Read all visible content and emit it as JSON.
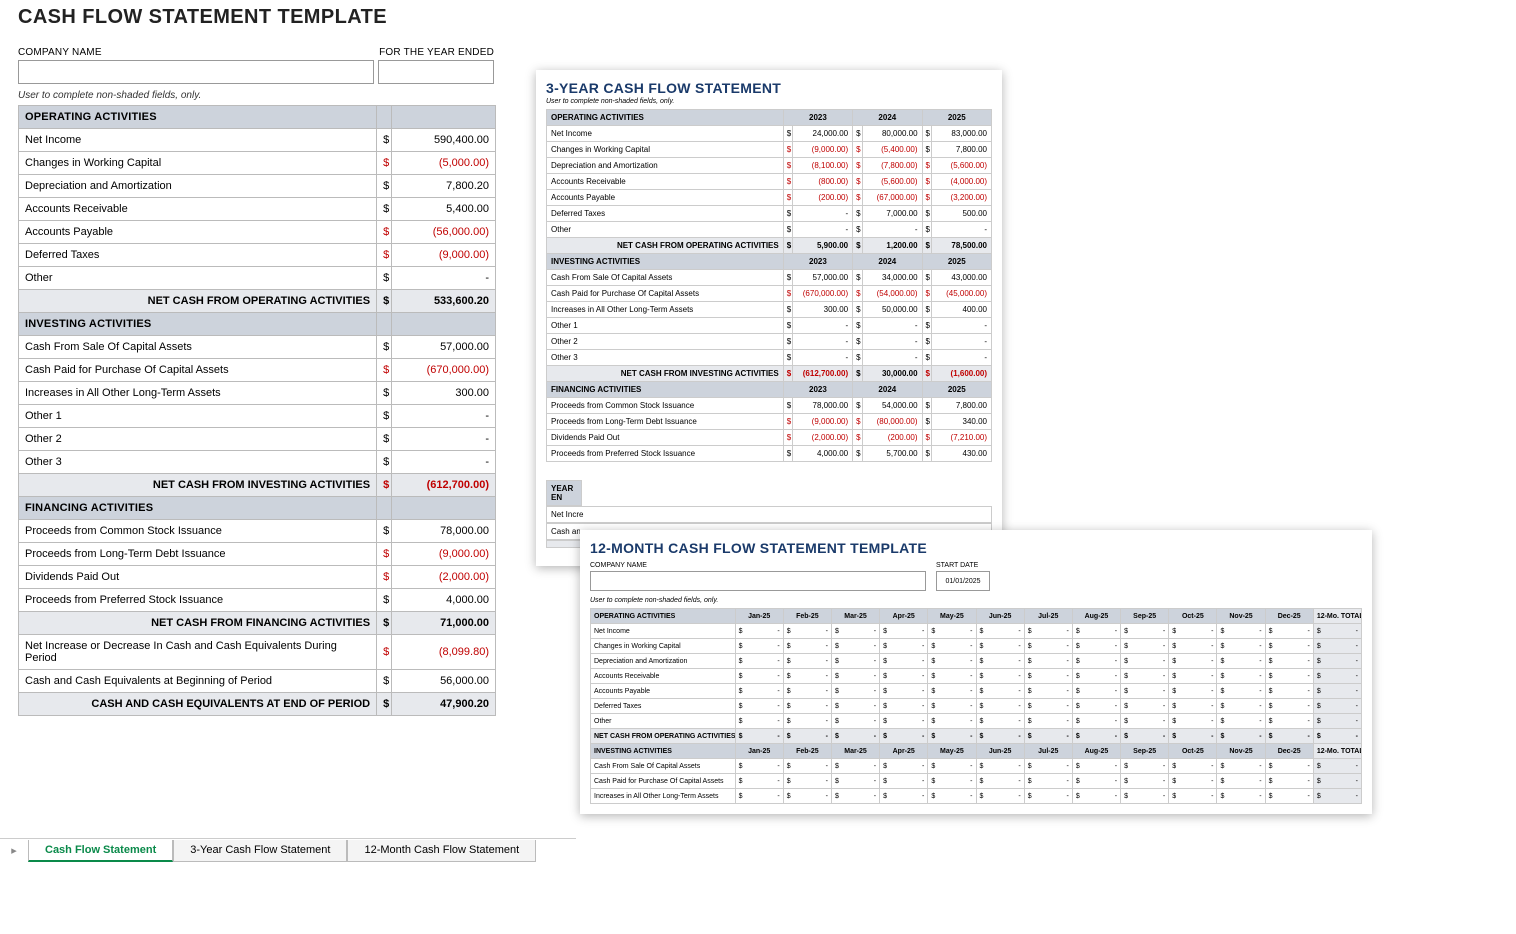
{
  "colors": {
    "section_header_bg": "#cdd3dc",
    "subtotal_bg": "#e7e9ed",
    "negative": "#c00000",
    "border": "#bbbbbb",
    "title_blue": "#1a3a6a",
    "tab_active": "#0a8a4a"
  },
  "main": {
    "title": "CASH FLOW STATEMENT TEMPLATE",
    "company_label": "COMPANY NAME",
    "year_label": "FOR THE YEAR ENDED",
    "helper": "User to complete non-shaded fields, only.",
    "currency": "$",
    "sections": [
      {
        "header": "OPERATING ACTIVITIES",
        "rows": [
          {
            "label": "Net Income",
            "value": "590,400.00",
            "neg": false
          },
          {
            "label": "Changes in Working Capital",
            "value": "(5,000.00)",
            "neg": true
          },
          {
            "label": "Depreciation and Amortization",
            "value": "7,800.20",
            "neg": false
          },
          {
            "label": "Accounts Receivable",
            "value": "5,400.00",
            "neg": false
          },
          {
            "label": "Accounts Payable",
            "value": "(56,000.00)",
            "neg": true
          },
          {
            "label": "Deferred Taxes",
            "value": "(9,000.00)",
            "neg": true
          },
          {
            "label": "Other",
            "value": "-",
            "neg": false
          }
        ],
        "subtotal": {
          "label": "NET CASH FROM OPERATING ACTIVITIES",
          "value": "533,600.20",
          "neg": false
        }
      },
      {
        "header": "INVESTING ACTIVITIES",
        "rows": [
          {
            "label": "Cash From Sale Of Capital Assets",
            "value": "57,000.00",
            "neg": false
          },
          {
            "label": "Cash Paid for Purchase Of Capital Assets",
            "value": "(670,000.00)",
            "neg": true
          },
          {
            "label": "Increases in All Other Long-Term Assets",
            "value": "300.00",
            "neg": false
          },
          {
            "label": "Other 1",
            "value": "-",
            "neg": false
          },
          {
            "label": "Other 2",
            "value": "-",
            "neg": false
          },
          {
            "label": "Other 3",
            "value": "-",
            "neg": false
          }
        ],
        "subtotal": {
          "label": "NET CASH FROM INVESTING ACTIVITIES",
          "value": "(612,700.00)",
          "neg": true
        }
      },
      {
        "header": "FINANCING ACTIVITIES",
        "rows": [
          {
            "label": "Proceeds from Common Stock Issuance",
            "value": "78,000.00",
            "neg": false
          },
          {
            "label": "Proceeds from Long-Term Debt Issuance",
            "value": "(9,000.00)",
            "neg": true
          },
          {
            "label": "Dividends Paid Out",
            "value": "(2,000.00)",
            "neg": true
          },
          {
            "label": "Proceeds from Preferred Stock Issuance",
            "value": "4,000.00",
            "neg": false
          }
        ],
        "subtotal": {
          "label": "NET CASH FROM FINANCING ACTIVITIES",
          "value": "71,000.00",
          "neg": false
        }
      }
    ],
    "footer_rows": [
      {
        "label": "Net Increase or Decrease In Cash and Cash Equivalents During Period",
        "value": "(8,099.80)",
        "neg": true,
        "shaded": false
      },
      {
        "label": "Cash and Cash Equivalents at Beginning of Period",
        "value": "56,000.00",
        "neg": false,
        "shaded": false
      },
      {
        "label": "CASH AND CASH EQUIVALENTS AT END OF PERIOD",
        "value": "47,900.20",
        "neg": false,
        "shaded": true,
        "bold": true
      }
    ]
  },
  "tabs": {
    "items": [
      {
        "label": "Cash Flow Statement",
        "active": true
      },
      {
        "label": "3-Year Cash Flow Statement",
        "active": false
      },
      {
        "label": "12-Month Cash Flow Statement",
        "active": false
      }
    ]
  },
  "three_year": {
    "title": "3-YEAR CASH FLOW STATEMENT",
    "helper": "User to complete non-shaded fields, only.",
    "years": [
      "2023",
      "2024",
      "2025"
    ],
    "currency": "$",
    "sections": [
      {
        "header": "OPERATING ACTIVITIES",
        "rows": [
          {
            "label": "Net Income",
            "v": [
              "24,000.00",
              "80,000.00",
              "83,000.00"
            ],
            "neg": [
              false,
              false,
              false
            ]
          },
          {
            "label": "Changes in Working Capital",
            "v": [
              "(9,000.00)",
              "(5,400.00)",
              "7,800.00"
            ],
            "neg": [
              true,
              true,
              false
            ]
          },
          {
            "label": "Depreciation and Amortization",
            "v": [
              "(8,100.00)",
              "(7,800.00)",
              "(5,600.00)"
            ],
            "neg": [
              true,
              true,
              true
            ]
          },
          {
            "label": "Accounts Receivable",
            "v": [
              "(800.00)",
              "(5,600.00)",
              "(4,000.00)"
            ],
            "neg": [
              true,
              true,
              true
            ]
          },
          {
            "label": "Accounts Payable",
            "v": [
              "(200.00)",
              "(67,000.00)",
              "(3,200.00)"
            ],
            "neg": [
              true,
              true,
              true
            ]
          },
          {
            "label": "Deferred Taxes",
            "v": [
              "-",
              "7,000.00",
              "500.00"
            ],
            "neg": [
              false,
              false,
              false
            ]
          },
          {
            "label": "Other",
            "v": [
              "-",
              "-",
              "-"
            ],
            "neg": [
              false,
              false,
              false
            ]
          }
        ],
        "subtotal": {
          "label": "NET CASH FROM OPERATING ACTIVITIES",
          "v": [
            "5,900.00",
            "1,200.00",
            "78,500.00"
          ],
          "neg": [
            false,
            false,
            false
          ]
        }
      },
      {
        "header": "INVESTING ACTIVITIES",
        "rows": [
          {
            "label": "Cash From Sale Of Capital Assets",
            "v": [
              "57,000.00",
              "34,000.00",
              "43,000.00"
            ],
            "neg": [
              false,
              false,
              false
            ]
          },
          {
            "label": "Cash Paid for Purchase Of Capital Assets",
            "v": [
              "(670,000.00)",
              "(54,000.00)",
              "(45,000.00)"
            ],
            "neg": [
              true,
              true,
              true
            ]
          },
          {
            "label": "Increases in All Other Long-Term Assets",
            "v": [
              "300.00",
              "50,000.00",
              "400.00"
            ],
            "neg": [
              false,
              false,
              false
            ]
          },
          {
            "label": "Other 1",
            "v": [
              "-",
              "-",
              "-"
            ],
            "neg": [
              false,
              false,
              false
            ]
          },
          {
            "label": "Other 2",
            "v": [
              "-",
              "-",
              "-"
            ],
            "neg": [
              false,
              false,
              false
            ]
          },
          {
            "label": "Other 3",
            "v": [
              "-",
              "-",
              "-"
            ],
            "neg": [
              false,
              false,
              false
            ]
          }
        ],
        "subtotal": {
          "label": "NET CASH FROM INVESTING ACTIVITIES",
          "v": [
            "(612,700.00)",
            "30,000.00",
            "(1,600.00)"
          ],
          "neg": [
            true,
            false,
            true
          ]
        }
      },
      {
        "header": "FINANCING ACTIVITIES",
        "rows": [
          {
            "label": "Proceeds from Common Stock Issuance",
            "v": [
              "78,000.00",
              "54,000.00",
              "7,800.00"
            ],
            "neg": [
              false,
              false,
              false
            ]
          },
          {
            "label": "Proceeds from Long-Term Debt Issuance",
            "v": [
              "(9,000.00)",
              "(80,000.00)",
              "340.00"
            ],
            "neg": [
              true,
              true,
              false
            ]
          },
          {
            "label": "Dividends Paid Out",
            "v": [
              "(2,000.00)",
              "(200.00)",
              "(7,210.00)"
            ],
            "neg": [
              true,
              true,
              true
            ]
          },
          {
            "label": "Proceeds from Preferred Stock Issuance",
            "v": [
              "4,000.00",
              "5,700.00",
              "430.00"
            ],
            "neg": [
              false,
              false,
              false
            ]
          }
        ]
      }
    ],
    "summary": {
      "band_label": "YEAR EN",
      "line1": "Net Incre",
      "line2": "Cash an"
    }
  },
  "twelve_month": {
    "title": "12-MONTH CASH FLOW STATEMENT TEMPLATE",
    "company_label": "COMPANY NAME",
    "date_label": "START DATE",
    "date_value": "01/01/2025",
    "helper": "User to complete non-shaded fields, only.",
    "months": [
      "Jan-25",
      "Feb-25",
      "Mar-25",
      "Apr-25",
      "May-25",
      "Jun-25",
      "Jul-25",
      "Aug-25",
      "Sep-25",
      "Oct-25",
      "Nov-25",
      "Dec-25"
    ],
    "total_header": "12-Mo. TOTAL",
    "currency": "$",
    "sections": [
      {
        "header": "OPERATING ACTIVITIES",
        "rows": [
          "Net Income",
          "Changes in Working Capital",
          "Depreciation and Amortization",
          "Accounts Receivable",
          "Accounts Payable",
          "Deferred Taxes",
          "Other"
        ],
        "subtotal": "NET CASH FROM OPERATING ACTIVITIES"
      },
      {
        "header": "INVESTING ACTIVITIES",
        "rows": [
          "Cash From Sale Of Capital Assets",
          "Cash Paid for Purchase Of Capital Assets",
          "Increases in All Other Long-Term Assets"
        ]
      }
    ]
  }
}
